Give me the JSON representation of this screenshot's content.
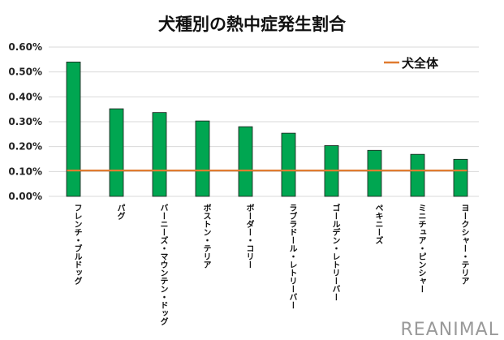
{
  "chart_data": {
    "type": "bar",
    "title": "犬種別の熱中症発生割合",
    "categories": [
      "フレンチ・ブルドッグ",
      "パグ",
      "バーニーズ・マウンテン・ドッグ",
      "ボストン・テリア",
      "ボーダー・コリー",
      "ラブラドール・レトリーバー",
      "ゴールデン・レトリーバー",
      "ペキニーズ",
      "ミニチュア・ピンシャー",
      "ヨークシャー・テリア"
    ],
    "series": [
      {
        "values": [
          0.54,
          0.352,
          0.337,
          0.303,
          0.28,
          0.254,
          0.204,
          0.185,
          0.169,
          0.149
        ],
        "color": "#00a651"
      }
    ],
    "reference_line": {
      "name": "犬全体",
      "value": 0.104,
      "color": "#e07b30"
    },
    "yticks": [
      "0.00%",
      "0.10%",
      "0.20%",
      "0.30%",
      "0.40%",
      "0.50%",
      "0.60%"
    ],
    "ylim": [
      0,
      0.6
    ],
    "y_unit": "%",
    "grid": true,
    "legend_position": "top-right"
  },
  "watermark": "REANIMAL"
}
